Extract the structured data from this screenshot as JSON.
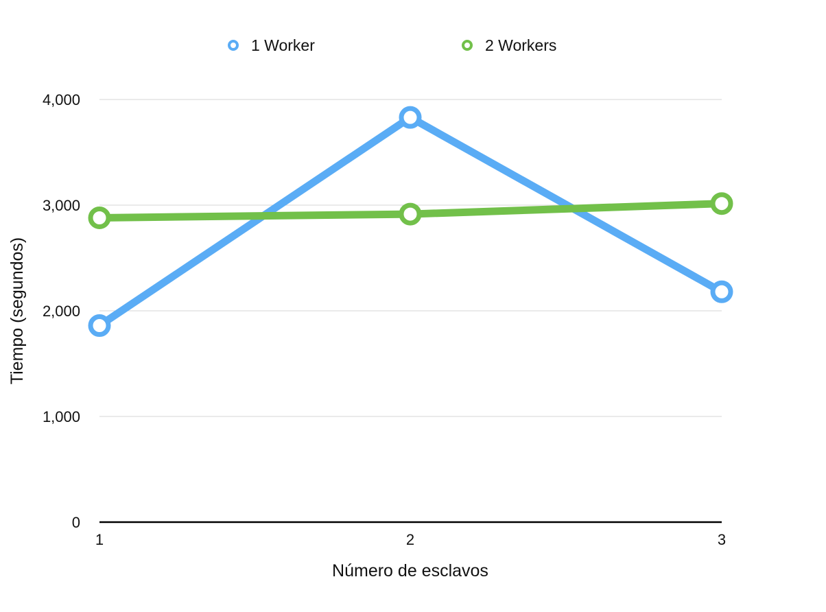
{
  "chart_data": {
    "type": "line",
    "title": "",
    "xlabel": "Número de esclavos",
    "ylabel": "Tiempo (segundos)",
    "x": [
      "1",
      "2",
      "3"
    ],
    "ylim": [
      0,
      4000
    ],
    "yticks": [
      0,
      1000,
      2000,
      3000,
      4000
    ],
    "ytick_labels": [
      "0",
      "1,000",
      "2,000",
      "3,000",
      "4,000"
    ],
    "grid": true,
    "legend_position": "top-center",
    "series": [
      {
        "name": "1 Worker",
        "color": "#5aacf5",
        "values": [
          1860,
          3830,
          2180
        ]
      },
      {
        "name": "2 Workers",
        "color": "#72c04a",
        "values": [
          2880,
          2915,
          3015
        ]
      }
    ]
  }
}
